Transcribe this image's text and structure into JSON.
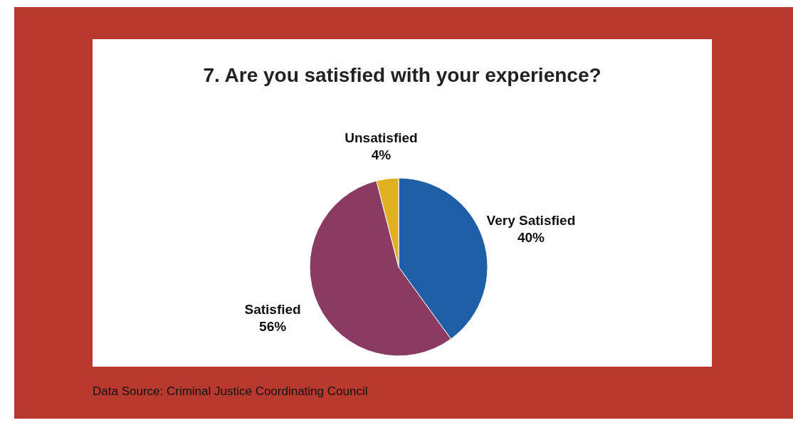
{
  "chart_data": {
    "type": "pie",
    "title": "7. Are you satisfied with your experience?",
    "categories": [
      "Very Satisfied",
      "Satisfied",
      "Unsatisfied"
    ],
    "values": [
      40,
      56,
      4
    ],
    "value_labels": [
      "40%",
      "56%",
      "4%"
    ],
    "colors": [
      "#1f5fa8",
      "#8b3a62",
      "#e0b020"
    ],
    "annotations": [
      "Data Source: Criminal Justice Coordinating Council"
    ]
  }
}
